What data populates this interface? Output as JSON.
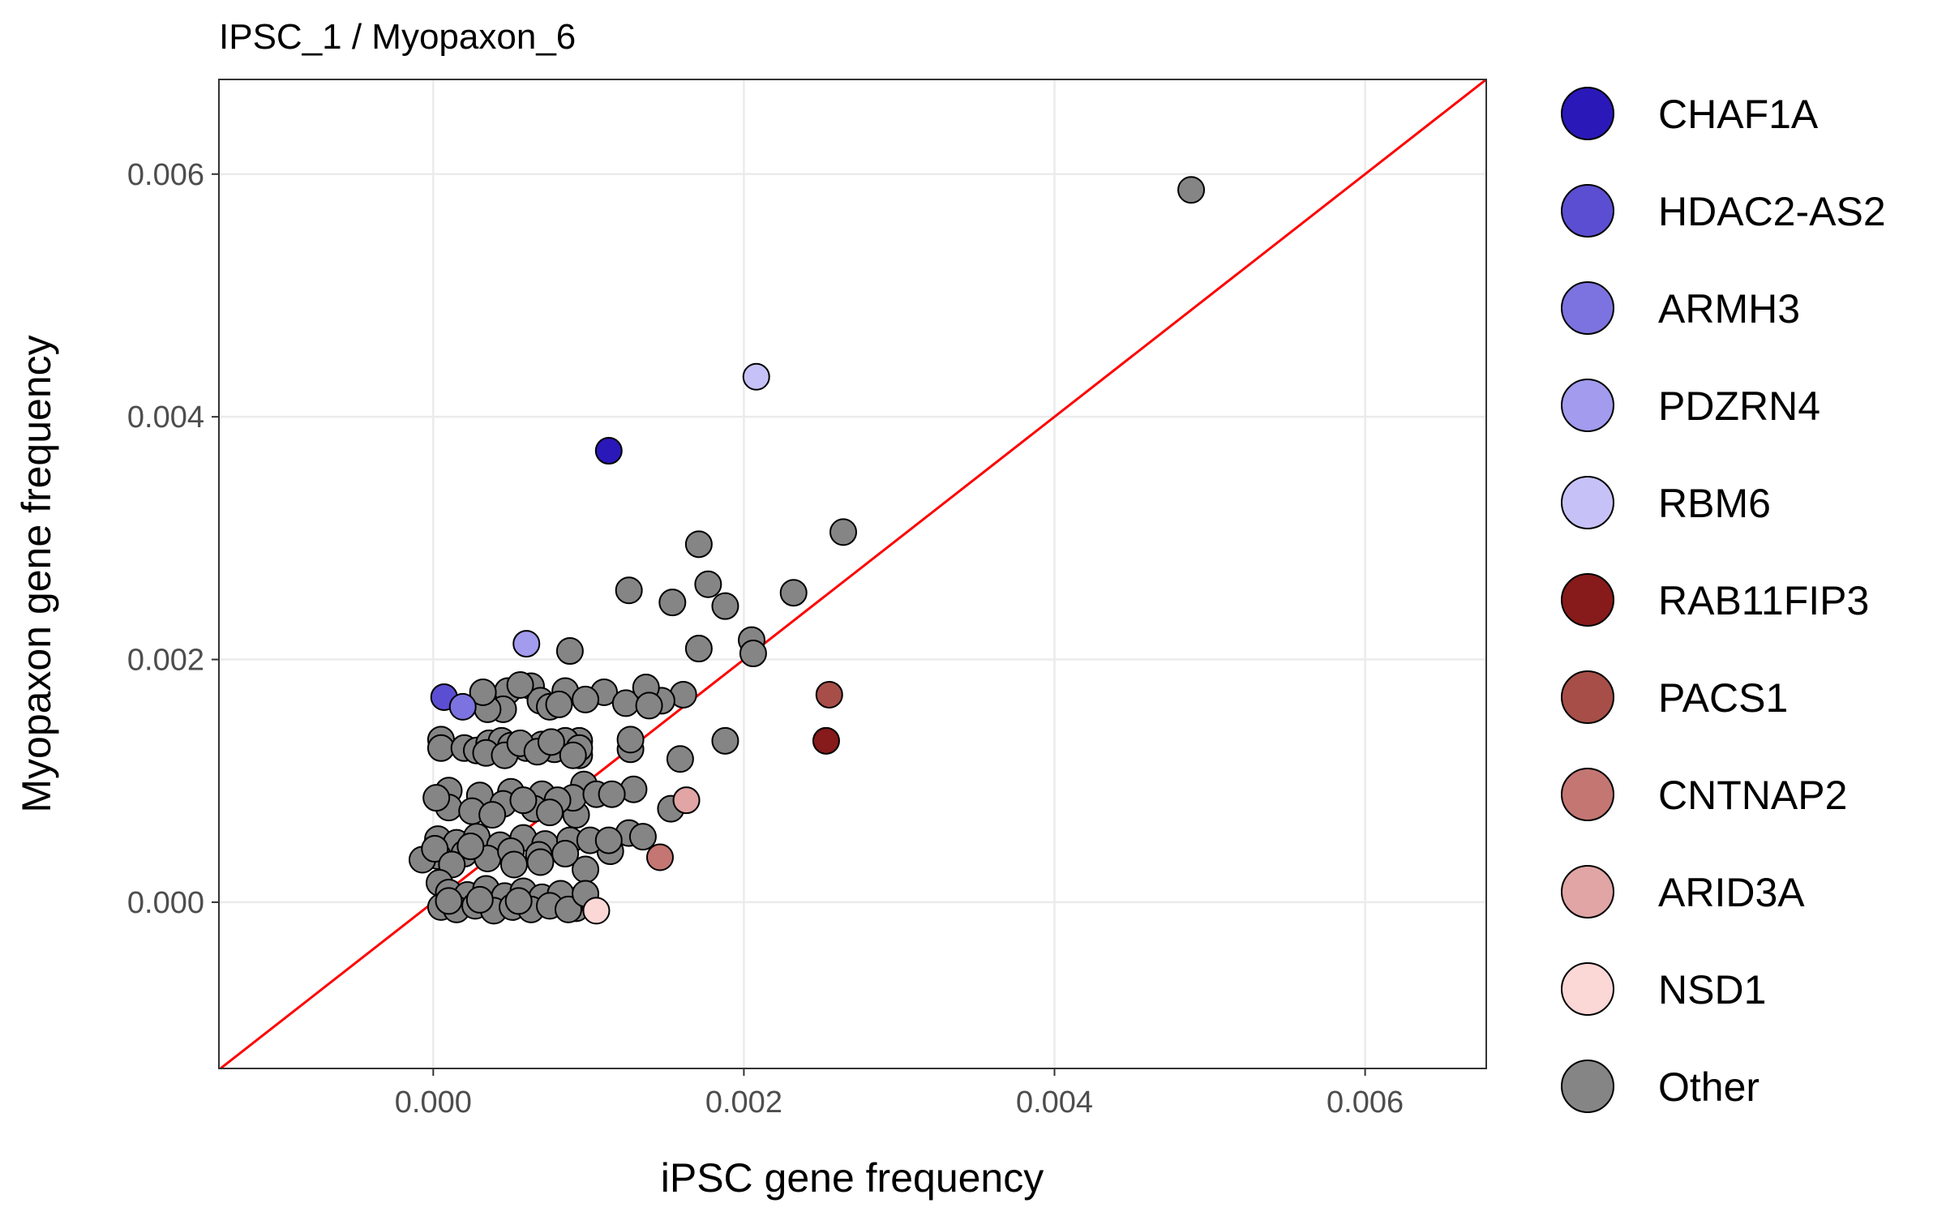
{
  "chart_data": {
    "type": "scatter",
    "title": "IPSC_1  /  Myopaxon_6",
    "xlabel": "iPSC gene frequency",
    "ylabel": "Myopaxon gene frequency",
    "xlim": [
      -0.00138,
      0.00678
    ],
    "ylim": [
      -0.00137,
      0.00678
    ],
    "xticks": [
      0.0,
      0.002,
      0.004,
      0.006
    ],
    "yticks": [
      0.0,
      0.002,
      0.004,
      0.006
    ],
    "xtick_labels": [
      "0.000",
      "0.002",
      "0.004",
      "0.006"
    ],
    "ytick_labels": [
      "0.000",
      "0.002",
      "0.004",
      "0.006"
    ],
    "grid": true,
    "reference_line": {
      "type": "identity",
      "slope": 1,
      "intercept": 0,
      "color": "#ff0000"
    },
    "legend_position": "right",
    "series": [
      {
        "name": "CHAF1A",
        "color": "#2a18b8",
        "points": [
          [
            0.00113,
            0.00372
          ]
        ]
      },
      {
        "name": "HDAC2-AS2",
        "color": "#5b4ed2",
        "points": [
          [
            7e-05,
            0.00169
          ]
        ]
      },
      {
        "name": "ARMH3",
        "color": "#7c73e0",
        "points": [
          [
            0.00019,
            0.00161
          ]
        ]
      },
      {
        "name": "PDZRN4",
        "color": "#a29bee",
        "points": [
          [
            0.0006,
            0.00213
          ]
        ]
      },
      {
        "name": "RBM6",
        "color": "#c6c2f7",
        "points": [
          [
            0.00208,
            0.00433
          ]
        ]
      },
      {
        "name": "RAB11FIP3",
        "color": "#871a1a",
        "points": [
          [
            0.00253,
            0.00133
          ]
        ]
      },
      {
        "name": "PACS1",
        "color": "#a74e48",
        "points": [
          [
            0.00255,
            0.00171
          ]
        ]
      },
      {
        "name": "CNTNAP2",
        "color": "#c47673",
        "points": [
          [
            0.00146,
            0.00037
          ]
        ]
      },
      {
        "name": "ARID3A",
        "color": "#e0a5a4",
        "points": [
          [
            0.00163,
            0.00084
          ]
        ]
      },
      {
        "name": "NSD1",
        "color": "#fbd7d6",
        "points": [
          [
            0.00105,
            -7e-05
          ]
        ]
      },
      {
        "name": "Other",
        "color": "#858585",
        "points": [
          [
            0.00488,
            0.00587
          ],
          [
            0.00264,
            0.00305
          ],
          [
            0.00171,
            0.00295
          ],
          [
            0.00126,
            0.00257
          ],
          [
            0.00177,
            0.00262
          ],
          [
            0.00154,
            0.00247
          ],
          [
            0.00188,
            0.00244
          ],
          [
            0.00232,
            0.00255
          ],
          [
            0.00205,
            0.00216
          ],
          [
            0.00206,
            0.00205
          ],
          [
            0.00171,
            0.00209
          ],
          [
            0.00088,
            0.00207
          ],
          [
            0.00161,
            0.00171
          ],
          [
            0.00147,
            0.00166
          ],
          [
            0.00188,
            0.00133
          ],
          [
            0.00159,
            0.00118
          ],
          [
            0.00153,
            0.00077
          ],
          [
            0.0011,
            0.00173
          ],
          [
            0.00124,
            0.00164
          ],
          [
            0.00137,
            0.00177
          ],
          [
            0.00139,
            0.00162
          ],
          [
            0.00127,
            0.00126
          ],
          [
            0.00127,
            0.00134
          ],
          [
            0.00129,
            0.00093
          ],
          [
            0.00126,
            0.00057
          ],
          [
            0.00135,
            0.00054
          ],
          [
            0.00114,
            0.00042
          ],
          [
            0.00092,
            0.00072
          ],
          [
            0.00094,
            0.00121
          ],
          [
            0.00094,
            0.00133
          ],
          [
            0.00097,
            0.00097
          ],
          [
            0.00098,
            0.00027
          ],
          [
            0.00098,
            -2e-05
          ],
          [
            0.00092,
            -5e-05
          ],
          [
            0.00096,
            4e-05
          ],
          [
            0.00089,
            1e-05
          ],
          [
            0.00048,
            0.00174
          ],
          [
            0.00063,
            0.00178
          ],
          [
            0.00069,
            0.00166
          ],
          [
            0.00075,
            0.00161
          ],
          [
            0.00085,
            0.00174
          ],
          [
            0.00045,
            0.00159
          ],
          [
            0.00081,
            0.00163
          ],
          [
            0.00098,
            0.00167
          ],
          [
            5e-05,
            0.00134
          ],
          [
            5e-05,
            0.00127
          ],
          [
            0.0002,
            0.00127
          ],
          [
            0.00028,
            0.00125
          ],
          [
            0.00036,
            0.00131
          ],
          [
            0.00044,
            0.00133
          ],
          [
            0.0005,
            0.00129
          ],
          [
            0.0006,
            0.00127
          ],
          [
            0.0007,
            0.0013
          ],
          [
            0.00078,
            0.00126
          ],
          [
            0.00085,
            0.00133
          ],
          [
            0.00094,
            0.00127
          ],
          [
            0.00034,
            0.00123
          ],
          [
            0.00046,
            0.00121
          ],
          [
            0.00056,
            0.00131
          ],
          [
            0.00067,
            0.00124
          ],
          [
            0.00076,
            0.00132
          ],
          [
            0.0009,
            0.00121
          ],
          [
            0.0001,
            0.00092
          ],
          [
            0.0003,
            0.00088
          ],
          [
            0.0005,
            0.00091
          ],
          [
            0.0007,
            0.00089
          ],
          [
            0.0009,
            0.00086
          ],
          [
            0.0001,
            0.00078
          ],
          [
            0.00025,
            0.00075
          ],
          [
            0.00045,
            0.00081
          ],
          [
            0.00065,
            0.00077
          ],
          [
            0.0008,
            0.00084
          ],
          [
            2e-05,
            0.00086
          ],
          [
            0.00038,
            0.00072
          ],
          [
            0.00058,
            0.00084
          ],
          [
            0.00075,
            0.00074
          ],
          [
            3e-05,
            0.00052
          ],
          [
            0.00015,
            0.00049
          ],
          [
            0.00028,
            0.00054
          ],
          [
            0.00043,
            0.00047
          ],
          [
            0.00058,
            0.00053
          ],
          [
            0.00072,
            0.00048
          ],
          [
            0.00088,
            0.00051
          ],
          [
            3e-05,
            0.00038
          ],
          [
            0.0002,
            0.0004
          ],
          [
            0.00035,
            0.00036
          ],
          [
            0.0005,
            0.00042
          ],
          [
            0.00068,
            0.00039
          ],
          [
            0.00085,
            0.0004
          ],
          [
            -7e-05,
            0.00035
          ],
          [
            1e-05,
            0.00044
          ],
          [
            0.00012,
            0.00031
          ],
          [
            0.00024,
            0.00046
          ],
          [
            0.00052,
            0.00031
          ],
          [
            0.00069,
            0.00033
          ],
          [
            0.00101,
            0.00051
          ],
          [
            0.00113,
            0.00051
          ],
          [
            4e-05,
            0.00016
          ],
          [
            0.0001,
            8e-05
          ],
          [
            0.00022,
            6e-05
          ],
          [
            0.00034,
            0.00011
          ],
          [
            0.00046,
            5e-05
          ],
          [
            0.00058,
            9e-05
          ],
          [
            0.0007,
            4e-05
          ],
          [
            0.00082,
            7e-05
          ],
          [
            5e-05,
            -4e-05
          ],
          [
            0.00015,
            -6e-05
          ],
          [
            0.00027,
            -3e-05
          ],
          [
            0.00039,
            -7e-05
          ],
          [
            0.00051,
            -4e-05
          ],
          [
            0.00063,
            -6e-05
          ],
          [
            0.00075,
            -3e-05
          ],
          [
            0.00087,
            -6e-05
          ],
          [
            0.00098,
            7e-05
          ],
          [
            0.0001,
            1e-05
          ],
          [
            0.0003,
            2e-05
          ],
          [
            0.00055,
            1e-05
          ],
          [
            0.00035,
            0.00159
          ],
          [
            0.00105,
            0.00089
          ],
          [
            0.00115,
            0.00089
          ],
          [
            0.00032,
            0.00173
          ],
          [
            0.00056,
            0.00179
          ]
        ]
      }
    ]
  }
}
